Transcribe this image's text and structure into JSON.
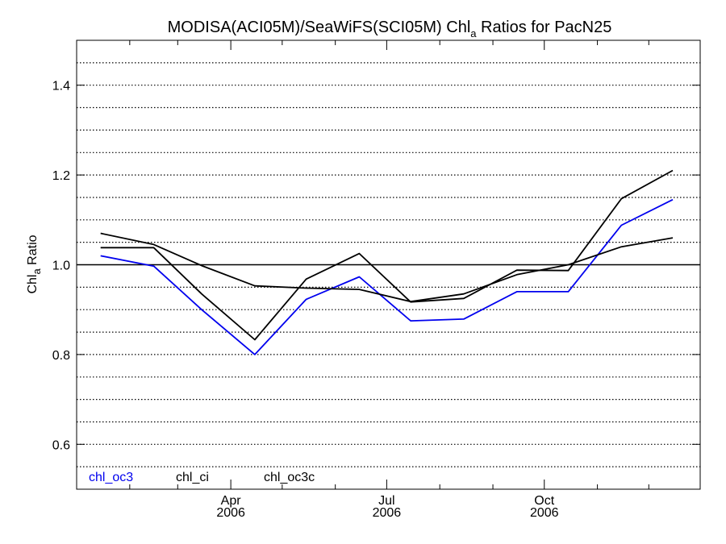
{
  "chart_data": {
    "type": "line",
    "title": {
      "main": "MODISA(ACI05M)/SeaWiFS(SCI05M)  Chl",
      "subscript": "a",
      "rest": " Ratios for PacN25"
    },
    "ylabel": {
      "main": "Chl",
      "subscript": "a",
      "rest": " Ratio"
    },
    "ylim": [
      0.5,
      1.5
    ],
    "xlim": [
      "2006-01-01",
      "2006-12-31"
    ],
    "yticks": [
      {
        "value": 0.6,
        "label": "0.6"
      },
      {
        "value": 0.8,
        "label": "0.8"
      },
      {
        "value": 1.0,
        "label": "1.0"
      },
      {
        "value": 1.2,
        "label": "1.2"
      },
      {
        "value": 1.4,
        "label": "1.4"
      }
    ],
    "ygrid_minor": [
      0.55,
      0.6,
      0.65,
      0.7,
      0.75,
      0.8,
      0.85,
      0.9,
      0.95,
      1.05,
      1.1,
      1.15,
      1.2,
      1.25,
      1.3,
      1.35,
      1.4,
      1.45
    ],
    "reference_line": 1.0,
    "xticks": [
      {
        "date": "2006-04-01",
        "label": "Apr",
        "sublabel": "2006"
      },
      {
        "date": "2006-07-01",
        "label": "Jul",
        "sublabel": "2006"
      },
      {
        "date": "2006-10-01",
        "label": "Oct",
        "sublabel": "2006"
      }
    ],
    "x_minor_ticks": [
      "2006-02-01",
      "2006-03-01",
      "2006-05-01",
      "2006-06-01",
      "2006-08-01",
      "2006-09-01",
      "2006-11-01",
      "2006-12-01"
    ],
    "x": [
      "2006-01-15",
      "2006-02-15",
      "2006-03-15",
      "2006-04-15",
      "2006-05-15",
      "2006-06-15",
      "2006-07-15",
      "2006-08-15",
      "2006-09-15",
      "2006-10-15",
      "2006-11-15",
      "2006-12-15"
    ],
    "series": [
      {
        "name": "chl_oc3",
        "color": "#0000ee",
        "values": [
          1.02,
          0.997,
          0.9,
          0.8,
          0.923,
          0.973,
          0.875,
          0.879,
          0.94,
          0.94,
          1.088,
          1.145
        ]
      },
      {
        "name": "chl_ci",
        "color": "#000000",
        "values": [
          1.07,
          1.045,
          0.998,
          0.953,
          0.948,
          0.945,
          0.918,
          0.935,
          0.978,
          1.0,
          1.04,
          1.06
        ]
      },
      {
        "name": "chl_oc3c",
        "color": "#000000",
        "values": [
          1.038,
          1.038,
          0.935,
          0.833,
          0.968,
          1.025,
          0.917,
          0.925,
          0.988,
          0.987,
          1.147,
          1.21
        ]
      }
    ],
    "legend_placement": "bottom-left"
  }
}
